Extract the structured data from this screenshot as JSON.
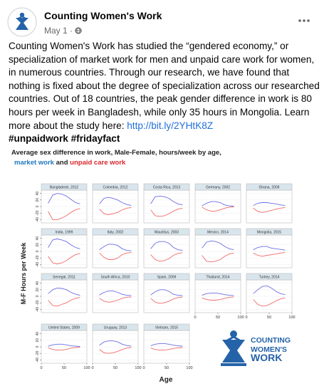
{
  "post": {
    "author": "Counting Women's Work",
    "date": "May 1",
    "separator": "·",
    "body": {
      "text": "Counting Women's Work has studied the “gendered economy,” or specialization of market work for men and unpaid care work for women, in numerous countries. Through our research, we have found that nothing is fixed about the degree of specialization across our researched countries. Out of 18 countries, the peak gender difference in work is 80 hours per week in Bangladesh, while only 35 hours in Mongolia. Learn more about the study here:",
      "link": "http://bit.ly/2YHtK8Z",
      "hashtags": "#unpaidwork #fridayfact"
    },
    "logo": [
      "COUNTING",
      "WOMEN'S",
      "WORK"
    ]
  },
  "chart_data": {
    "type": "line",
    "title": "Average sex difference in work, Male-Female, hours/week by age,",
    "series": [
      {
        "name": "market work",
        "color": "#1f77c0",
        "line_color": "#6b6ee6"
      },
      {
        "name": "unpaid care work",
        "color": "#d8262c",
        "line_color": "#f06a6a"
      }
    ],
    "legend_joiner": "and",
    "ylabel": "M-F Hours per Week",
    "xlabel": "Age",
    "x": [
      15,
      25,
      35,
      45,
      55,
      65,
      75,
      85
    ],
    "xlim": [
      0,
      100
    ],
    "xticks": [
      0,
      50,
      100
    ],
    "ylim": [
      -50,
      50
    ],
    "yticks": [
      40,
      20,
      0,
      -20,
      -40
    ],
    "panels": [
      {
        "title": "Bangladesh, 2012",
        "market": [
          10,
          35,
          40,
          38,
          32,
          22,
          12,
          8
        ],
        "unpaid": [
          -15,
          -40,
          -40,
          -35,
          -28,
          -18,
          -10,
          -6
        ]
      },
      {
        "title": "Colombia, 2012",
        "market": [
          8,
          25,
          28,
          25,
          20,
          12,
          6,
          3
        ],
        "unpaid": [
          -8,
          -22,
          -25,
          -22,
          -18,
          -10,
          -5,
          -3
        ]
      },
      {
        "title": "Costa Rica, 2013",
        "market": [
          8,
          30,
          32,
          30,
          25,
          15,
          8,
          5
        ],
        "unpaid": [
          -10,
          -28,
          -30,
          -28,
          -22,
          -14,
          -8,
          -5
        ]
      },
      {
        "title": "Germany, 2002",
        "market": [
          2,
          10,
          15,
          15,
          12,
          5,
          2,
          1
        ],
        "unpaid": [
          -2,
          -10,
          -14,
          -14,
          -10,
          -5,
          -2,
          -1
        ]
      },
      {
        "title": "Ghana, 2009",
        "market": [
          3,
          10,
          12,
          12,
          10,
          8,
          5,
          3
        ],
        "unpaid": [
          -5,
          -15,
          -18,
          -15,
          -12,
          -8,
          -5,
          -3
        ]
      },
      {
        "title": "India, 1999",
        "market": [
          12,
          35,
          38,
          35,
          30,
          20,
          12,
          8
        ],
        "unpaid": [
          -15,
          -35,
          -38,
          -35,
          -28,
          -18,
          -10,
          -6
        ]
      },
      {
        "title": "Italy, 2002",
        "market": [
          5,
          15,
          22,
          22,
          18,
          8,
          3,
          2
        ],
        "unpaid": [
          -5,
          -18,
          -25,
          -25,
          -20,
          -10,
          -5,
          -3
        ]
      },
      {
        "title": "Mauritius, 2003",
        "market": [
          8,
          25,
          30,
          30,
          25,
          12,
          5,
          3
        ],
        "unpaid": [
          -10,
          -25,
          -30,
          -28,
          -22,
          -12,
          -6,
          -4
        ]
      },
      {
        "title": "Mexico, 2014",
        "market": [
          10,
          28,
          32,
          30,
          25,
          15,
          8,
          5
        ],
        "unpaid": [
          -12,
          -30,
          -32,
          -30,
          -25,
          -15,
          -8,
          -5
        ]
      },
      {
        "title": "Mongolia, 2015",
        "market": [
          5,
          12,
          15,
          15,
          10,
          8,
          6,
          4
        ],
        "unpaid": [
          -5,
          -12,
          -15,
          -12,
          -10,
          -8,
          -5,
          -3
        ]
      },
      {
        "title": "Senegal, 2011",
        "market": [
          8,
          20,
          25,
          24,
          20,
          12,
          6,
          3
        ],
        "unpaid": [
          -12,
          -28,
          -30,
          -25,
          -20,
          -12,
          -6,
          -4
        ]
      },
      {
        "title": "South Africa, 2010",
        "market": [
          4,
          12,
          16,
          16,
          12,
          6,
          3,
          2
        ],
        "unpaid": [
          -6,
          -15,
          -18,
          -16,
          -12,
          -6,
          -3,
          -2
        ]
      },
      {
        "title": "Spain, 2009",
        "market": [
          4,
          14,
          20,
          20,
          15,
          6,
          3,
          2
        ],
        "unpaid": [
          -6,
          -18,
          -22,
          -20,
          -15,
          -8,
          -4,
          -2
        ]
      },
      {
        "title": "Thailand, 2014",
        "market": [
          3,
          8,
          10,
          10,
          8,
          5,
          3,
          2
        ],
        "unpaid": [
          -5,
          -10,
          -12,
          -12,
          -10,
          -6,
          -3,
          -2
        ]
      },
      {
        "title": "Turkey, 2014",
        "market": [
          8,
          20,
          30,
          32,
          25,
          15,
          8,
          5
        ],
        "unpaid": [
          -10,
          -25,
          -30,
          -28,
          -22,
          -14,
          -8,
          -5
        ]
      },
      {
        "title": "United States, 2009",
        "market": [
          2,
          6,
          8,
          8,
          6,
          3,
          2,
          1
        ],
        "unpaid": [
          -3,
          -8,
          -10,
          -10,
          -8,
          -4,
          -2,
          -1
        ]
      },
      {
        "title": "Uruguay, 2013",
        "market": [
          5,
          15,
          18,
          18,
          15,
          8,
          4,
          2
        ],
        "unpaid": [
          -8,
          -18,
          -20,
          -18,
          -14,
          -8,
          -4,
          -2
        ]
      },
      {
        "title": "Vietnam, 2015",
        "market": [
          3,
          8,
          10,
          10,
          8,
          5,
          3,
          2
        ],
        "unpaid": [
          -4,
          -8,
          -10,
          -10,
          -8,
          -5,
          -3,
          -2
        ]
      }
    ]
  }
}
